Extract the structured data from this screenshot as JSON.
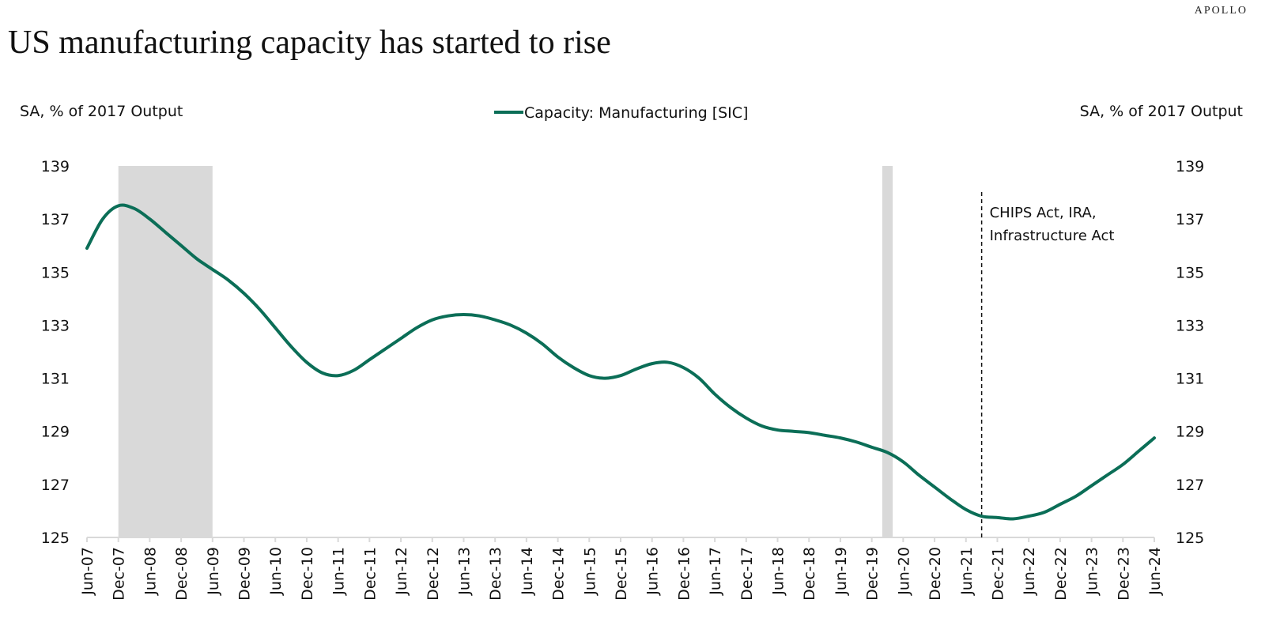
{
  "header": {
    "brand": "APOLLO",
    "title": "US manufacturing capacity has started to rise"
  },
  "colors": {
    "series": "#0b6e57",
    "recession": "#d9d9d9",
    "axis": "#d9d9d9"
  },
  "chart_data": {
    "type": "line",
    "title": "US manufacturing capacity has started to rise",
    "ylabel_left": "SA, % of 2017 Output",
    "ylabel_right": "SA, % of 2017 Output",
    "ylim": [
      125,
      139
    ],
    "yticks": [
      125,
      127,
      129,
      131,
      133,
      135,
      137,
      139
    ],
    "xlim": [
      "2007-06",
      "2024-06"
    ],
    "xticks": [
      "Jun-07",
      "Dec-07",
      "Jun-08",
      "Dec-08",
      "Jun-09",
      "Dec-09",
      "Jun-10",
      "Dec-10",
      "Jun-11",
      "Dec-11",
      "Jun-12",
      "Dec-12",
      "Jun-13",
      "Dec-13",
      "Jun-14",
      "Dec-14",
      "Jun-15",
      "Dec-15",
      "Jun-16",
      "Dec-16",
      "Jun-17",
      "Dec-17",
      "Jun-18",
      "Dec-18",
      "Jun-19",
      "Dec-19",
      "Jun-20",
      "Dec-20",
      "Jun-21",
      "Dec-21",
      "Jun-22",
      "Dec-22",
      "Jun-23",
      "Dec-23",
      "Jun-24"
    ],
    "grid": false,
    "legend": "top-center",
    "recessions": [
      {
        "start": "2007-12",
        "end": "2009-06"
      },
      {
        "start": "2020-02",
        "end": "2020-04"
      }
    ],
    "annotations": [
      {
        "x": "2021-09",
        "text": [
          "CHIPS Act, IRA,",
          "Infrastructure Act"
        ]
      }
    ],
    "series": [
      {
        "name": "Capacity: Manufacturing [SIC]",
        "x": [
          "2007-06",
          "2007-09",
          "2007-12",
          "2008-03",
          "2008-06",
          "2008-09",
          "2008-12",
          "2009-03",
          "2009-06",
          "2009-09",
          "2009-12",
          "2010-03",
          "2010-06",
          "2010-09",
          "2010-12",
          "2011-03",
          "2011-06",
          "2011-09",
          "2011-12",
          "2012-03",
          "2012-06",
          "2012-09",
          "2012-12",
          "2013-03",
          "2013-06",
          "2013-09",
          "2013-12",
          "2014-03",
          "2014-06",
          "2014-09",
          "2014-12",
          "2015-03",
          "2015-06",
          "2015-09",
          "2015-12",
          "2016-03",
          "2016-06",
          "2016-09",
          "2016-12",
          "2017-03",
          "2017-06",
          "2017-09",
          "2017-12",
          "2018-03",
          "2018-06",
          "2018-09",
          "2018-12",
          "2019-03",
          "2019-06",
          "2019-09",
          "2019-12",
          "2020-03",
          "2020-06",
          "2020-09",
          "2020-12",
          "2021-03",
          "2021-06",
          "2021-09",
          "2021-12",
          "2022-03",
          "2022-06",
          "2022-09",
          "2022-12",
          "2023-03",
          "2023-06",
          "2023-09",
          "2023-12",
          "2024-03",
          "2024-06"
        ],
        "values": [
          135.9,
          137.0,
          137.5,
          137.4,
          137.0,
          136.5,
          136.0,
          135.5,
          135.1,
          134.7,
          134.2,
          133.6,
          132.9,
          132.2,
          131.6,
          131.2,
          131.1,
          131.3,
          131.7,
          132.1,
          132.5,
          132.9,
          133.2,
          133.35,
          133.4,
          133.35,
          133.2,
          133.0,
          132.7,
          132.3,
          131.8,
          131.4,
          131.1,
          131.0,
          131.1,
          131.35,
          131.55,
          131.6,
          131.4,
          131.0,
          130.4,
          129.9,
          129.5,
          129.2,
          129.05,
          129.0,
          128.95,
          128.85,
          128.75,
          128.6,
          128.4,
          128.2,
          127.85,
          127.35,
          126.9,
          126.45,
          126.05,
          125.8,
          125.75,
          125.7,
          125.8,
          125.95,
          126.25,
          126.55,
          126.95,
          127.35,
          127.75,
          128.25,
          128.75
        ]
      }
    ]
  }
}
